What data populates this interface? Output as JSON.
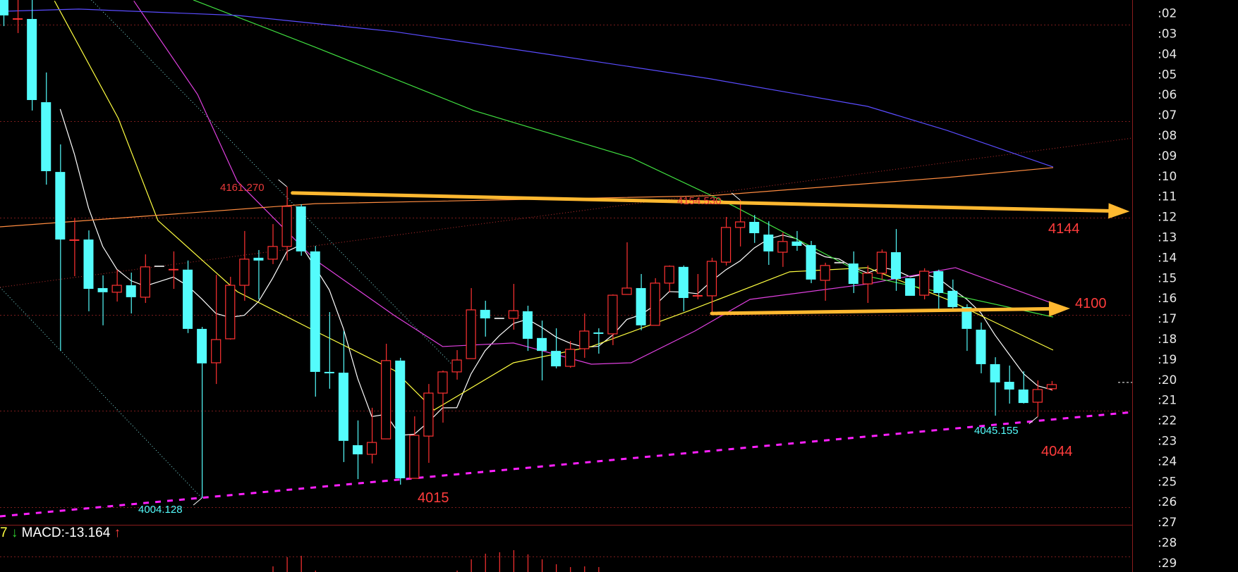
{
  "chart_data": {
    "type": "candlestick",
    "colors": {
      "up": "#ff3232",
      "down": "#54fcfc",
      "flat": "#c8c8c8",
      "background": "#000000",
      "grid": "#7a1c1c"
    },
    "y_axis_labels": [
      ":02",
      ":03",
      ":04",
      ":05",
      ":06",
      ":07",
      ":08",
      ":09",
      ":10",
      ":11",
      ":12",
      ":13",
      ":14",
      ":15",
      ":16",
      ":17",
      ":18",
      ":19",
      ":20",
      ":21",
      ":22",
      ":23",
      ":24",
      ":25",
      ":26",
      ":27",
      ":28",
      ":29"
    ],
    "candles": [
      [
        4255.5,
        4256.0,
        4242.3,
        4247.7
      ],
      [
        4245.9,
        4255.5,
        4238.8,
        4245.9
      ],
      [
        4245.9,
        4255.5,
        4199.7,
        4205.0
      ],
      [
        4203.9,
        4218.9,
        4162.3,
        4169.1
      ],
      [
        4168.7,
        4182.6,
        4078.4,
        4134.6
      ],
      [
        4134.3,
        4145.3,
        4116.1,
        4134.3
      ],
      [
        4134.6,
        4139.2,
        4098.4,
        4109.7
      ],
      [
        4110.1,
        4116.5,
        4091.3,
        4108.0
      ],
      [
        4108.0,
        4119.4,
        4103.3,
        4111.5
      ],
      [
        4111.5,
        4117.9,
        4097.3,
        4105.5
      ],
      [
        4105.5,
        4127.1,
        4102.6,
        4120.8
      ],
      [
        4121.1,
        4121.1,
        4121.1,
        4121.1
      ],
      [
        4119.4,
        4128.6,
        4109.7,
        4119.4
      ],
      [
        4119.4,
        4124.0,
        4087.4,
        4089.5
      ],
      [
        4089.5,
        4090.5,
        4004.128,
        4072.1
      ],
      [
        4072.4,
        4116.8,
        4061.7,
        4084.1
      ],
      [
        4084.5,
        4115.8,
        4084.1,
        4111.5
      ],
      [
        4111.5,
        4138.9,
        4103.7,
        4124.7
      ],
      [
        4125.4,
        4129.3,
        4104.4,
        4124.0
      ],
      [
        4124.7,
        4142.4,
        4122.2,
        4131.1
      ],
      [
        4131.1,
        4161.27,
        4124.0,
        4151.3
      ],
      [
        4151.3,
        4152.4,
        4126.4,
        4128.6
      ],
      [
        4128.6,
        4131.4,
        4055.3,
        4067.8
      ],
      [
        4067.8,
        4098.0,
        4059.3,
        4067.1
      ],
      [
        4067.4,
        4088.4,
        4022.3,
        4033.0
      ],
      [
        4030.8,
        4043.3,
        4013.7,
        4026.2
      ],
      [
        4026.2,
        4049.7,
        4021.6,
        4032.2
      ],
      [
        4034.0,
        4082.0,
        4034.0,
        4073.5
      ],
      [
        4073.5,
        4074.9,
        4010.9,
        4014.1
      ],
      [
        4014.1,
        4045.4,
        4014.1,
        4035.8
      ],
      [
        4035.4,
        4061.7,
        4021.9,
        4057.1
      ],
      [
        4057.1,
        4068.5,
        4042.2,
        4067.8
      ],
      [
        4067.8,
        4078.8,
        4063.9,
        4073.8
      ],
      [
        4074.5,
        4110.1,
        4074.5,
        4099.1
      ],
      [
        4099.1,
        4103.7,
        4085.6,
        4094.8
      ],
      [
        4094.8,
        4094.8,
        4094.8,
        4094.8
      ],
      [
        4094.8,
        4112.2,
        4089.1,
        4098.7
      ],
      [
        4098.4,
        4101.2,
        4078.4,
        4084.5
      ],
      [
        4084.9,
        4093.7,
        4063.5,
        4078.4
      ],
      [
        4078.4,
        4089.8,
        4069.6,
        4070.6
      ],
      [
        4070.6,
        4083.4,
        4069.9,
        4079.2
      ],
      [
        4079.5,
        4097.3,
        4074.9,
        4088.4
      ],
      [
        4087.7,
        4089.8,
        4077.0,
        4087.0
      ],
      [
        4087.0,
        4106.9,
        4081.3,
        4106.5
      ],
      [
        4106.9,
        4133.2,
        4106.9,
        4110.1
      ],
      [
        4110.1,
        4117.2,
        4088.8,
        4091.3
      ],
      [
        4091.3,
        4115.1,
        4091.3,
        4112.6
      ],
      [
        4112.6,
        4121.5,
        4108.0,
        4121.1
      ],
      [
        4120.8,
        4121.5,
        4098.4,
        4105.1
      ],
      [
        4106.2,
        4117.2,
        4104.4,
        4106.2
      ],
      [
        4106.2,
        4125.4,
        4097.0,
        4123.6
      ],
      [
        4123.2,
        4146.0,
        4121.5,
        4140.7
      ],
      [
        4140.7,
        4154.53,
        4131.1,
        4143.5
      ],
      [
        4143.5,
        4147.0,
        4132.9,
        4137.8
      ],
      [
        4137.1,
        4143.8,
        4121.8,
        4128.6
      ],
      [
        4128.2,
        4138.2,
        4120.8,
        4133.6
      ],
      [
        4133.6,
        4138.9,
        4128.9,
        4131.4
      ],
      [
        4131.8,
        4133.9,
        4112.6,
        4114.4
      ],
      [
        4114.0,
        4122.9,
        4103.7,
        4121.5
      ],
      [
        4122.9,
        4122.9,
        4122.9,
        4122.9
      ],
      [
        4122.5,
        4128.6,
        4107.6,
        4112.2
      ],
      [
        4112.2,
        4121.5,
        4102.6,
        4117.6
      ],
      [
        4117.6,
        4129.6,
        4114.4,
        4128.2
      ],
      [
        4128.2,
        4139.9,
        4108.7,
        4114.7
      ],
      [
        4115.1,
        4115.1,
        4106.2,
        4106.2
      ],
      [
        4106.5,
        4120.1,
        4104.4,
        4118.6
      ],
      [
        4118.6,
        4119.4,
        4099.1,
        4107.6
      ],
      [
        4108.7,
        4114.4,
        4099.1,
        4100.5
      ],
      [
        4100.5,
        4101.9,
        4078.4,
        4089.5
      ],
      [
        4089.1,
        4092.7,
        4067.1,
        4071.7
      ],
      [
        4071.7,
        4075.2,
        4045.7,
        4062.5
      ],
      [
        4062.8,
        4071.0,
        4051.8,
        4058.9
      ],
      [
        4058.9,
        4068.1,
        4051.8,
        4052.1
      ],
      [
        4052.5,
        4063.5,
        4045.155,
        4058.9
      ],
      [
        4059.3,
        4063.2,
        4058.2,
        4061.4
      ]
    ],
    "ma_lines": [
      {
        "color": "#ffffff",
        "period": 5
      },
      {
        "color": "#ffff40",
        "points": [
          [
            3.6,
            4255
          ],
          [
            8.1,
            4195.8
          ],
          [
            10.9,
            4144.2
          ],
          [
            16.5,
            4108.3
          ],
          [
            22,
            4088.4
          ],
          [
            27.6,
            4068.5
          ],
          [
            30.4,
            4048.6
          ],
          [
            36,
            4072.4
          ],
          [
            41.5,
            4080.6
          ],
          [
            48.3,
            4098.4
          ],
          [
            55.5,
            4118.3
          ],
          [
            61,
            4120.4
          ],
          [
            66.6,
            4104.4
          ],
          [
            74.1,
            4078.8
          ]
        ]
      },
      {
        "color": "#e040e0",
        "points": [
          [
            9.2,
            4255
          ],
          [
            13.7,
            4207.8
          ],
          [
            16.5,
            4164
          ],
          [
            22,
            4124.3
          ],
          [
            27.6,
            4096.2
          ],
          [
            31,
            4080.6
          ],
          [
            36,
            4082.4
          ],
          [
            41.5,
            4071.7
          ],
          [
            44.3,
            4072.4
          ],
          [
            48.8,
            4088.4
          ],
          [
            52.7,
            4104.4
          ],
          [
            61,
            4112.2
          ],
          [
            67.2,
            4120.4
          ],
          [
            74.1,
            4102.3
          ]
        ]
      },
      {
        "color": "#40e040",
        "points": [
          [
            13.4,
            4255.5
          ],
          [
            22,
            4231.7
          ],
          [
            33.2,
            4199.7
          ],
          [
            44.3,
            4175.9
          ],
          [
            51.6,
            4151.3
          ],
          [
            61,
            4116.1
          ],
          [
            74.1,
            4095.5
          ]
        ]
      },
      {
        "color": "#5a4cff",
        "points": [
          [
            0,
            4249.8
          ],
          [
            5.3,
            4250.9
          ],
          [
            16.5,
            4247.7
          ],
          [
            27.6,
            4239.5
          ],
          [
            38.7,
            4227.8
          ],
          [
            49.9,
            4215.7
          ],
          [
            61,
            4201.8
          ],
          [
            66.6,
            4189.7
          ],
          [
            74.1,
            4171.2
          ]
        ]
      },
      {
        "color": "#ff8c40",
        "points": [
          [
            -0.25,
            4141
          ],
          [
            22,
            4152.7
          ],
          [
            49.9,
            4156.7
          ],
          [
            66.6,
            4165.9
          ],
          [
            74.1,
            4170.9
          ]
        ]
      }
    ],
    "drawings": [
      {
        "kind": "dotted",
        "color": "#7fe0e0",
        "from": [
          -0.25,
          4110.5
        ],
        "to": [
          14,
          4004.128
        ]
      },
      {
        "kind": "dotted",
        "color": "#7fe0e0",
        "from": [
          6.2,
          4255.5
        ],
        "to": [
          31.8,
          4070.6
        ]
      },
      {
        "kind": "dotted",
        "color": "#c03030",
        "from": [
          -0.25,
          4110.5
        ],
        "to": [
          79.7,
          4185.8
        ]
      },
      {
        "kind": "dashed-thick",
        "color": "#ff20ff",
        "from": [
          -0.25,
          3994.9
        ],
        "to": [
          79.7,
          4047.5
        ]
      },
      {
        "kind": "arrow",
        "color": "#ffb830",
        "from": [
          20.4,
          4158.1
        ],
        "to": [
          79.5,
          4148.8
        ]
      },
      {
        "kind": "arrow",
        "color": "#ffb830",
        "from": [
          50,
          4097.3
        ],
        "to": [
          75.3,
          4099.8
        ]
      }
    ],
    "last_price": 4062.5,
    "annotations": {
      "high1": "4161.270",
      "high2": "4154.530",
      "low1": "4004.128",
      "low2": "4045.155",
      "level_4144": "4144",
      "level_4100": "4100",
      "level_4044": "4044",
      "level_4015": "4015"
    },
    "macd": {
      "prefix": "7",
      "down_arrow": "↓",
      "label": "MACD:-13.164",
      "up_arrow": "↑",
      "histogram": [
        [
          19,
          0.8
        ],
        [
          20,
          2.1
        ],
        [
          21,
          2.3
        ],
        [
          22,
          0.2
        ],
        [
          32,
          0.2
        ],
        [
          33,
          1.8
        ],
        [
          34,
          2.6
        ],
        [
          35,
          2.8
        ],
        [
          36,
          3.1
        ],
        [
          37,
          2.5
        ],
        [
          38,
          1.8
        ],
        [
          39,
          1.1
        ],
        [
          40,
          0.7
        ],
        [
          41,
          0.8
        ],
        [
          42,
          0.7
        ]
      ]
    }
  }
}
